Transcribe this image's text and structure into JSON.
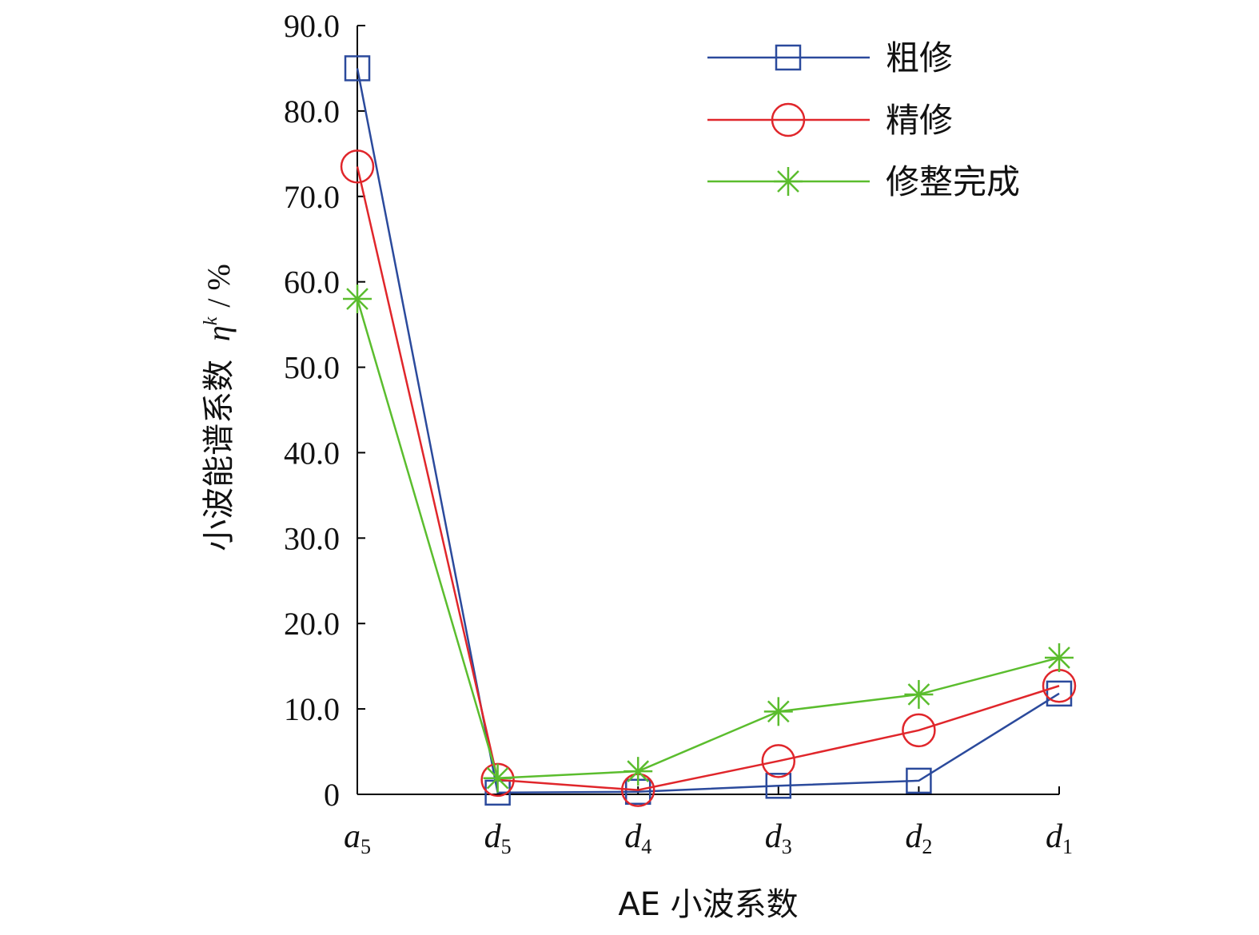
{
  "chart_data": {
    "type": "line",
    "xlabel": "AE 小波系数",
    "ylabel": {
      "text": "小波能谱系数",
      "symbol": "η",
      "superscript": "k",
      "unit": "/ %"
    },
    "categories": [
      {
        "base": "a",
        "sub": "5"
      },
      {
        "base": "d",
        "sub": "5"
      },
      {
        "base": "d",
        "sub": "4"
      },
      {
        "base": "d",
        "sub": "3"
      },
      {
        "base": "d",
        "sub": "2"
      },
      {
        "base": "d",
        "sub": "1"
      }
    ],
    "ylim": [
      0,
      90
    ],
    "yticks": [
      0,
      10,
      20,
      30,
      40,
      50,
      60,
      70,
      80,
      90
    ],
    "ytick_labels": [
      "0",
      "10.0",
      "20.0",
      "30.0",
      "40.0",
      "50.0",
      "60.0",
      "70.0",
      "80.0",
      "90.0"
    ],
    "grid": false,
    "legend_position": "top-right",
    "series": [
      {
        "name": "粗修",
        "color": "#2b4a9c",
        "marker": "square",
        "values": [
          85.0,
          0.2,
          0.3,
          1.0,
          1.6,
          11.8
        ]
      },
      {
        "name": "精修",
        "color": "#e0262b",
        "marker": "circle",
        "values": [
          73.5,
          1.7,
          0.5,
          3.9,
          7.5,
          12.7
        ]
      },
      {
        "name": "修整完成",
        "color": "#5bbd2e",
        "marker": "asterisk",
        "values": [
          58.0,
          1.9,
          2.7,
          9.7,
          11.7,
          16.0
        ]
      }
    ]
  }
}
